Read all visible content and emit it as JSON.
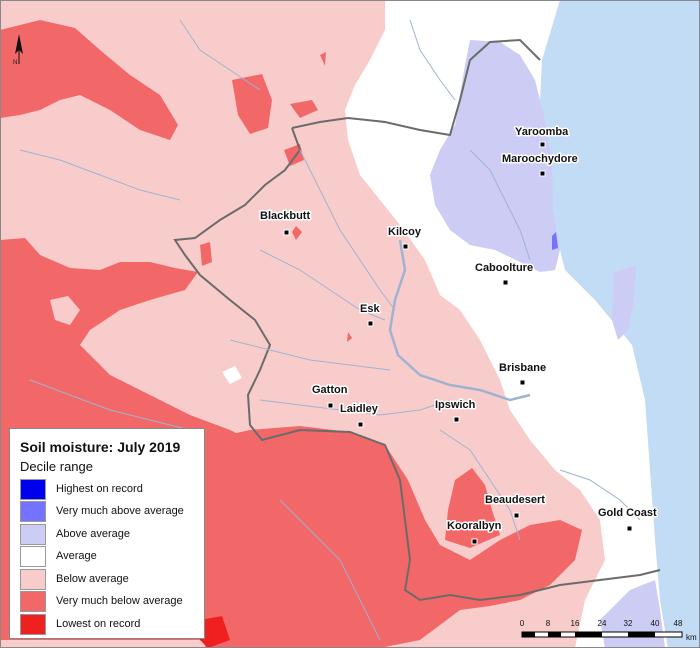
{
  "legend": {
    "title": "Soil moisture: July 2019",
    "subtitle": "Decile range",
    "items": [
      {
        "label": "Highest on record",
        "color": "#0000ee"
      },
      {
        "label": "Very much above average",
        "color": "#7373ff"
      },
      {
        "label": "Above average",
        "color": "#ccccf5"
      },
      {
        "label": "Average",
        "color": "#ffffff"
      },
      {
        "label": "Below average",
        "color": "#f9cccc"
      },
      {
        "label": "Very much below average",
        "color": "#f26868"
      },
      {
        "label": "Lowest on record",
        "color": "#ef2020"
      }
    ]
  },
  "north_label": "N",
  "towns": [
    {
      "name": "Yaroomba"
    },
    {
      "name": "Maroochydore"
    },
    {
      "name": "Blackbutt"
    },
    {
      "name": "Kilcoy"
    },
    {
      "name": "Caboolture"
    },
    {
      "name": "Esk"
    },
    {
      "name": "Brisbane"
    },
    {
      "name": "Gatton"
    },
    {
      "name": "Laidley"
    },
    {
      "name": "Ipswich"
    },
    {
      "name": "Beaudesert"
    },
    {
      "name": "Kooralbyn"
    },
    {
      "name": "Gold Coast"
    }
  ],
  "scale_bar": {
    "ticks": [
      "0",
      "8",
      "16",
      "24",
      "32",
      "40",
      "48"
    ],
    "unit": "km"
  },
  "colors": {
    "ocean": "#c2dcf5",
    "below_average": "#f9cccc",
    "very_much_below": "#f26868",
    "lowest": "#ef2020",
    "above_average": "#ccccf5",
    "very_much_above": "#7373ff",
    "average": "#ffffff",
    "river": "#9fb3d1"
  }
}
